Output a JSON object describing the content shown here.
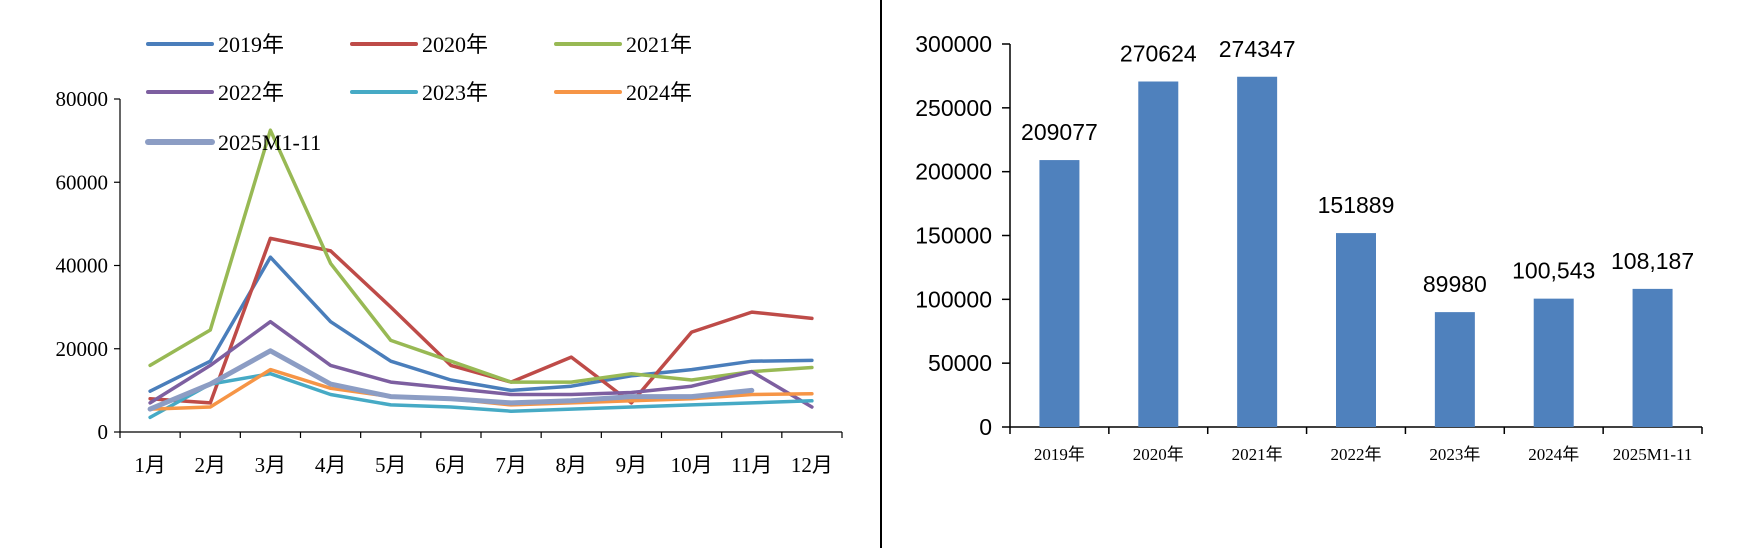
{
  "chart_data": [
    {
      "type": "line",
      "title": "",
      "xlabel": "",
      "ylabel": "",
      "categories": [
        "1月",
        "2月",
        "3月",
        "4月",
        "5月",
        "6月",
        "7月",
        "8月",
        "9月",
        "10月",
        "11月",
        "12月"
      ],
      "ylim": [
        0,
        80000
      ],
      "yticks": [
        "0",
        "20000",
        "40000",
        "60000",
        "80000"
      ],
      "grid": false,
      "legend_position": "top",
      "series": [
        {
          "name": "2019年",
          "color": "#4A7EBB",
          "values": [
            9800,
            17000,
            42000,
            26500,
            17000,
            12500,
            10000,
            11000,
            13500,
            15000,
            17000,
            17200
          ]
        },
        {
          "name": "2020年",
          "color": "#BE4B48",
          "values": [
            8000,
            7000,
            46500,
            43500,
            30000,
            16000,
            12000,
            18000,
            7000,
            24000,
            28800,
            27300
          ]
        },
        {
          "name": "2021年",
          "color": "#98B954",
          "values": [
            16000,
            24500,
            72500,
            40500,
            22000,
            17000,
            12000,
            12000,
            14000,
            12500,
            14500,
            15500
          ]
        },
        {
          "name": "2022年",
          "color": "#7D5FA0",
          "values": [
            7000,
            16000,
            26500,
            16000,
            12000,
            10500,
            9000,
            9000,
            9500,
            11000,
            14500,
            6000
          ]
        },
        {
          "name": "2023年",
          "color": "#46AAC5",
          "values": [
            3500,
            11500,
            14000,
            9000,
            6500,
            6000,
            5000,
            5500,
            6000,
            6500,
            7000,
            7500
          ]
        },
        {
          "name": "2024年",
          "color": "#F69546",
          "values": [
            5500,
            6000,
            15000,
            10500,
            8500,
            8000,
            6500,
            7000,
            7500,
            8000,
            9000,
            9200
          ]
        },
        {
          "name": "2025M1-11",
          "color": "#8C9DC4",
          "values": [
            5500,
            11500,
            19500,
            11500,
            8500,
            8000,
            7000,
            7500,
            8500,
            8500,
            10000,
            null
          ]
        }
      ]
    },
    {
      "type": "bar",
      "title": "",
      "xlabel": "",
      "ylabel": "",
      "categories": [
        "2019年",
        "2020年",
        "2021年",
        "2022年",
        "2023年",
        "2024年",
        "2025M1-11"
      ],
      "values": [
        209077,
        270624,
        274347,
        151889,
        89980,
        100543,
        108187
      ],
      "data_labels": [
        "209077",
        "270624",
        "274347",
        "151889",
        "89980",
        "100,543",
        "108,187"
      ],
      "ylim": [
        0,
        300000
      ],
      "yticks": [
        "0",
        "50000",
        "100000",
        "150000",
        "200000",
        "250000",
        "300000"
      ],
      "grid": false,
      "bar_color": "#4F81BD"
    }
  ]
}
